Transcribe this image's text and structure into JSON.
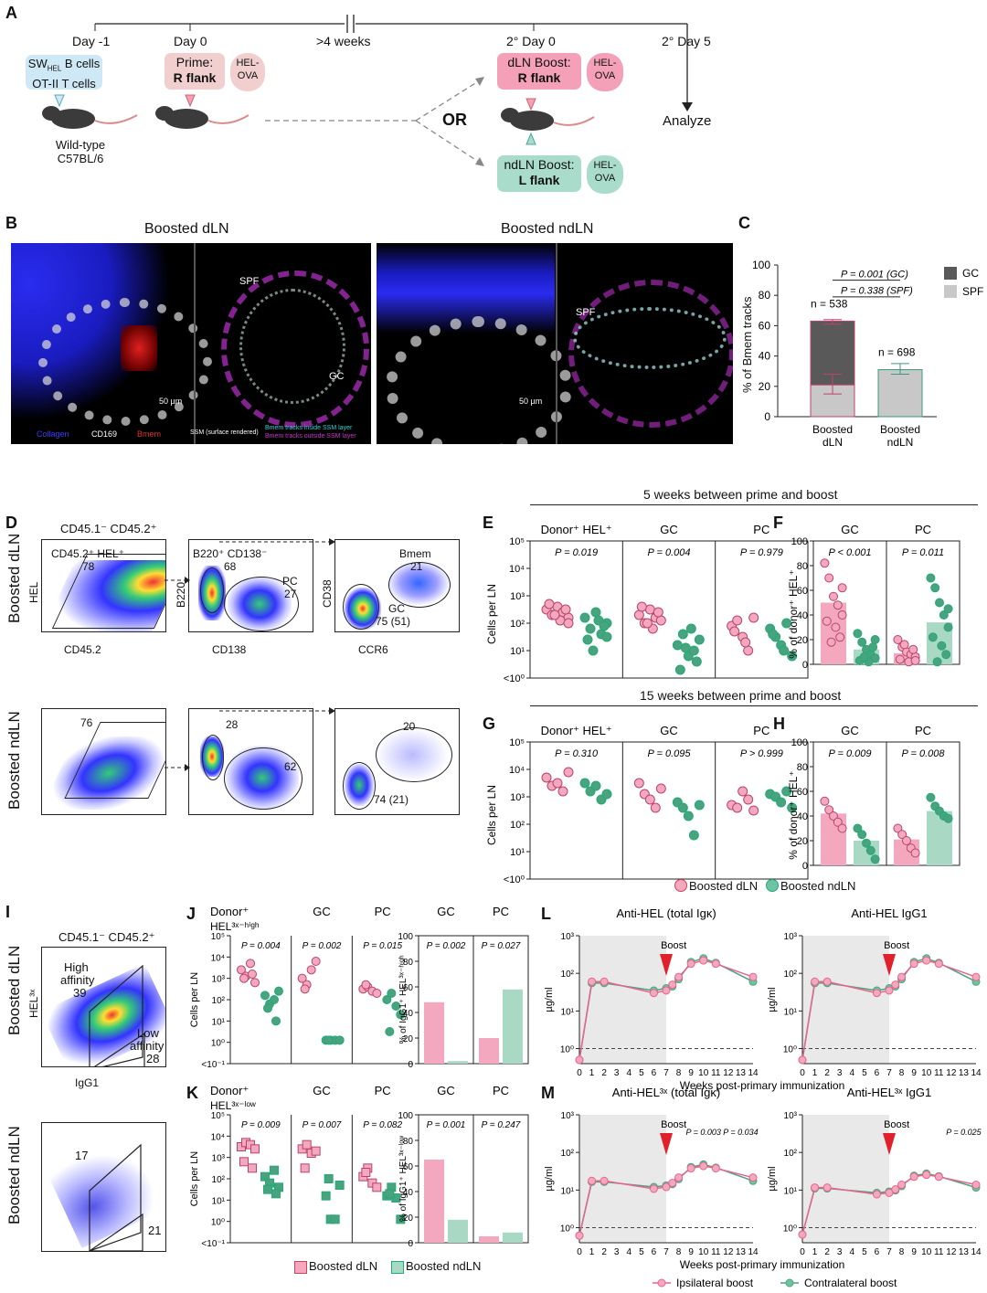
{
  "panels": {
    "A": "A",
    "B": "B",
    "C": "C",
    "D": "D",
    "E": "E",
    "F": "F",
    "G": "G",
    "H": "H",
    "I": "I",
    "J": "J",
    "K": "K",
    "L": "L",
    "M": "M"
  },
  "timeline": {
    "day_m1": "Day -1",
    "day0": "Day 0",
    "weeks4": ">4 weeks",
    "day0_2": "2° Day 0",
    "day5_2": "2° Day 5",
    "transfer_line1": "SW",
    "transfer_sub": "HEL",
    "transfer_line1b": " B cells",
    "transfer_line2": "OT-II T cells",
    "mouse_label1": "Wild-type",
    "mouse_label2": "C57BL/6",
    "prime_line1": "Prime:",
    "prime_line2": "R flank",
    "antigen": "HEL-OVA",
    "dln_line1": "dLN Boost:",
    "dln_line2": "R flank",
    "ndln_line1": "ndLN Boost:",
    "ndln_line2": "L flank",
    "or": "OR",
    "analyze": "Analyze"
  },
  "imaging": {
    "title_dln": "Boosted dLN",
    "title_ndln": "Boosted ndLN",
    "spf": "SPF",
    "gc": "GC",
    "scale": "50 µm",
    "legend_collagen": "Collagen",
    "legend_cd169": "CD169",
    "legend_bmem": "Bmem",
    "legend_ssm": "SSM (surface rendered)",
    "legend_inside": "Bmem tracks inside SSM layer",
    "legend_outside": "Bmem tracks outside SSM layer"
  },
  "panel_c": {
    "ylabel": "% of Bmem tracks",
    "p_gc": "P = 0.001 (GC)",
    "p_spf": "P = 0.338 (SPF)",
    "n_dln": "n = 538",
    "n_ndln": "n = 698",
    "legend": [
      "GC",
      "SPF"
    ],
    "xlabels": [
      [
        "Boosted",
        "dLN"
      ],
      [
        "Boosted",
        "ndLN"
      ]
    ],
    "yticks": [
      "0",
      "20",
      "40",
      "60",
      "80",
      "100"
    ]
  },
  "chart_data": [
    {
      "panel": "C",
      "type": "bar",
      "categories": [
        "Boosted dLN",
        "Boosted ndLN"
      ],
      "series": [
        {
          "name": "SPF",
          "values": [
            21,
            31
          ]
        },
        {
          "name": "GC",
          "values": [
            42,
            0
          ]
        }
      ],
      "ylabel": "% of Bmem tracks",
      "ylim": [
        0,
        100
      ],
      "n": [
        "n = 538",
        "n = 698"
      ]
    },
    {
      "panel": "F",
      "type": "bar",
      "title": "5 weeks between prime and boost",
      "groups": [
        "GC",
        "PC"
      ],
      "series": [
        {
          "name": "Boosted dLN",
          "values": [
            50,
            9
          ]
        },
        {
          "name": "Boosted ndLN",
          "values": [
            12,
            34
          ]
        }
      ],
      "ylim": [
        0,
        100
      ]
    },
    {
      "panel": "H",
      "type": "bar",
      "title": "15 weeks between prime and boost",
      "groups": [
        "GC",
        "PC"
      ],
      "series": [
        {
          "name": "Boosted dLN",
          "values": [
            42,
            21
          ]
        },
        {
          "name": "Boosted ndLN",
          "values": [
            20,
            44
          ]
        }
      ],
      "ylim": [
        0,
        100
      ]
    },
    {
      "panel": "L",
      "type": "line",
      "titles": [
        "Anti-HEL (total Igκ)",
        "Anti-HEL IgG1"
      ],
      "xlabel": "Weeks post-primary immunization",
      "ylabel": "µg/ml",
      "x": [
        0,
        1,
        2,
        6,
        7,
        7.5,
        8,
        9,
        10,
        11,
        14
      ],
      "series": [
        {
          "name": "Ipsilateral boost",
          "values": [
            0.5,
            60,
            60,
            30,
            35,
            50,
            80,
            180,
            220,
            180,
            80
          ]
        },
        {
          "name": "Contralateral boost",
          "values": [
            0.5,
            55,
            55,
            35,
            40,
            45,
            70,
            200,
            250,
            190,
            60
          ]
        }
      ]
    }
  ],
  "panel_d": {
    "header": "CD45.1⁻ CD45.2⁺",
    "row1": "Boosted dLN",
    "row2": "Boosted ndLN",
    "g1": "CD45.2⁺ HEL⁺",
    "g1v": "78",
    "g2": "B220⁺ CD138⁻",
    "g2v": "68",
    "pc": "PC",
    "pcv": "27",
    "bmem": "Bmem",
    "bmemv": "21",
    "gc": "GC",
    "gcv": "75 (51)",
    "ax_hel": "HEL",
    "ax_cd452": "CD45.2",
    "ax_b220": "B220",
    "ax_cd138": "CD138",
    "ax_cd38": "CD38",
    "ax_ccr6": "CCR6",
    "r2_g1v": "76",
    "r2_g2v": "28",
    "r2_pcv": "62",
    "r2_bmemv": "20",
    "r2_gcv": "74 (21)"
  },
  "panel_efgh": {
    "header5": "5 weeks between prime and boost",
    "header15": "15 weeks between prime and boost",
    "donor": "Donor⁺ HEL⁺",
    "gc": "GC",
    "pc": "PC",
    "ylabel_cells": "Cells per LN",
    "ylabel_pct": "% of donor⁺ HEL⁺",
    "e_p": [
      "P = 0.019",
      "P = 0.004",
      "P = 0.979"
    ],
    "f_p": [
      "P < 0.001",
      "P = 0.011"
    ],
    "g_p": [
      "P = 0.310",
      "P = 0.095",
      "P > 0.999"
    ],
    "h_p": [
      "P = 0.009",
      "P = 0.008"
    ],
    "log_ticks": [
      "10⁵",
      "10⁴",
      "10³",
      "10²",
      "10¹",
      "<10⁰"
    ],
    "pct_ticks": [
      "100",
      "80",
      "60",
      "40",
      "20",
      "0"
    ],
    "legend_dln": "Boosted dLN",
    "legend_ndln": "Boosted ndLN"
  },
  "panel_i": {
    "header": "CD45.1⁻ CD45.2⁺",
    "row1": "Boosted dLN",
    "row2": "Boosted ndLN",
    "high": "High",
    "affinity": "affinity",
    "highv": "39",
    "low": "Low",
    "lowv": "28",
    "ax_y": "HEL³ˣ",
    "ax_x": "IgG1",
    "r2_high": "17",
    "r2_low": "21"
  },
  "panel_jk": {
    "j_title1": "Donor⁺",
    "j_title2": "HEL³ˣ⁻ʰⁱᵍʰ",
    "k_title1": "Donor⁺",
    "k_title2": "HEL³ˣ⁻ˡᵒʷ",
    "gc": "GC",
    "pc": "PC",
    "j_p": [
      "P = 0.004",
      "P = 0.002",
      "P = 0.015"
    ],
    "j_p2": [
      "P = 0.002",
      "P = 0.027"
    ],
    "k_p": [
      "P = 0.009",
      "P = 0.007",
      "P = 0.082"
    ],
    "k_p2": [
      "P = 0.001",
      "P = 0.247"
    ],
    "ylabel_cells": "Cells per LN",
    "ylabel_j2": "% of IgG1⁺ HEL³ˣ⁻ʰⁱᵍʰ",
    "ylabel_k2": "% of IgG1⁺ HEL³ˣ⁻ˡᵒʷ",
    "log_ticks": [
      "10⁵",
      "10⁴",
      "10³",
      "10²",
      "10¹",
      "10⁰",
      "<10⁻¹"
    ],
    "pct_ticks": [
      "100",
      "80",
      "60",
      "40",
      "20",
      "0"
    ],
    "legend_dln": "Boosted dLN",
    "legend_ndln": "Boosted ndLN"
  },
  "panel_lm": {
    "l_t1": "Anti-HEL (total Igκ)",
    "l_t2": "Anti-HEL IgG1",
    "m_t1": "Anti-HEL³ˣ (total Igκ)",
    "m_t2": "Anti-HEL³ˣ IgG1",
    "boost": "Boost",
    "ylabel": "µg/ml",
    "xlabel": "Weeks post-primary immunization",
    "xticks": [
      "0",
      "1",
      "2",
      "3",
      "4",
      "5",
      "6",
      "7",
      "8",
      "9",
      "10",
      "11",
      "12",
      "13",
      "14"
    ],
    "yticks": [
      "10³",
      "10²",
      "10¹",
      "10⁰"
    ],
    "m_p1": "P = 0.003",
    "m_p2": "P = 0.034",
    "m_p3": "P = 0.025",
    "legend_ipsi": "Ipsilateral boost",
    "legend_contra": "Contralateral boost"
  },
  "colors": {
    "pink": "#e8648c",
    "pink_fill": "#f4a8bf",
    "green": "#4aa37f",
    "green_fill": "#a9d8c4",
    "prime_box": "#f1cfcf",
    "dln_box": "#f4a0b8",
    "ndln_box": "#a9dccb",
    "transfer_box": "#cfe8f5",
    "gc_dark": "#595959",
    "spf_grey": "#c8c8c8"
  }
}
